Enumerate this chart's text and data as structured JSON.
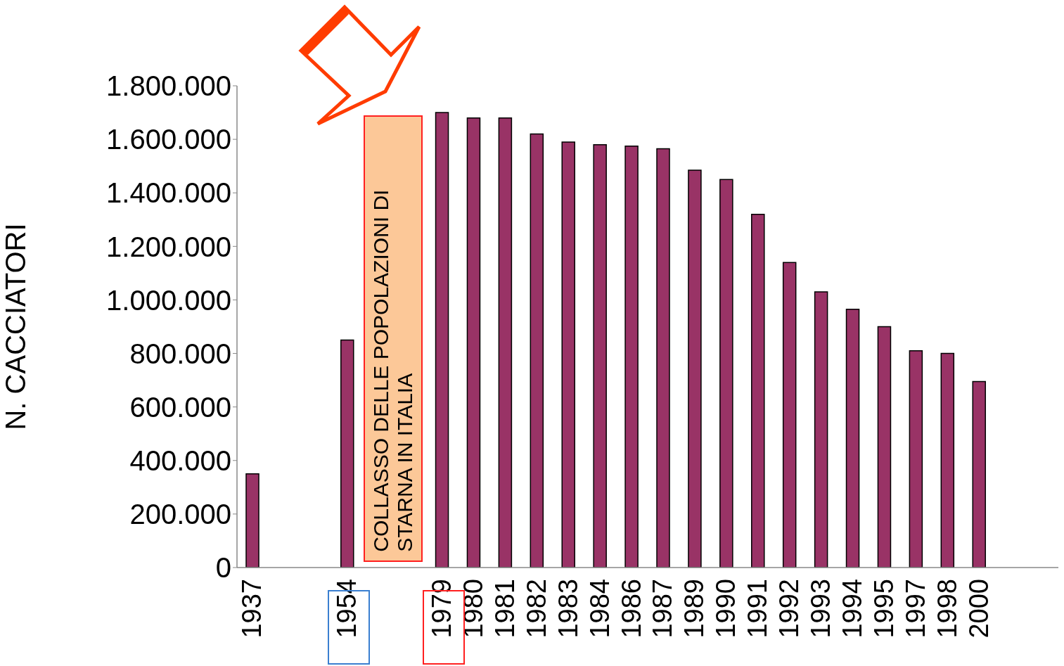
{
  "chart_data": {
    "type": "bar",
    "ylabel": "N. CACCIATORI",
    "categories": [
      "1937",
      null,
      null,
      "1954",
      null,
      null,
      "1979",
      "1980",
      "1981",
      "1982",
      "1983",
      "1984",
      "1986",
      "1987",
      "1989",
      "1990",
      "1991",
      "1992",
      "1993",
      "1994",
      "1995",
      "1997",
      "1998",
      "2000",
      null,
      null
    ],
    "values": [
      350000,
      null,
      null,
      850000,
      null,
      null,
      1700000,
      1680000,
      1680000,
      1620000,
      1590000,
      1580000,
      1575000,
      1565000,
      1485000,
      1450000,
      1320000,
      1140000,
      1030000,
      965000,
      900000,
      810000,
      800000,
      695000,
      null,
      null
    ],
    "color": "#993366",
    "ylim": [
      0,
      1800000
    ],
    "yticks": [
      0,
      {
        "value": 200000,
        "label": "200.000"
      },
      {
        "value": 400000,
        "label": "400.000"
      },
      {
        "value": 600000,
        "label": "600.000"
      },
      {
        "value": 800000,
        "label": "800.000"
      },
      {
        "value": 1000000,
        "label": "1.000.000"
      },
      {
        "value": 1200000,
        "label": "1.200.000"
      },
      {
        "value": 1400000,
        "label": "1.400.000"
      },
      {
        "value": 1600000,
        "label": "1.600.000"
      },
      {
        "value": 1800000,
        "label": "1.800.000"
      }
    ],
    "grid": false,
    "legend": false,
    "annotations": [
      "COLLASSO DELLE POPOLAZIONI DI STARNA IN ITALIA"
    ]
  }
}
